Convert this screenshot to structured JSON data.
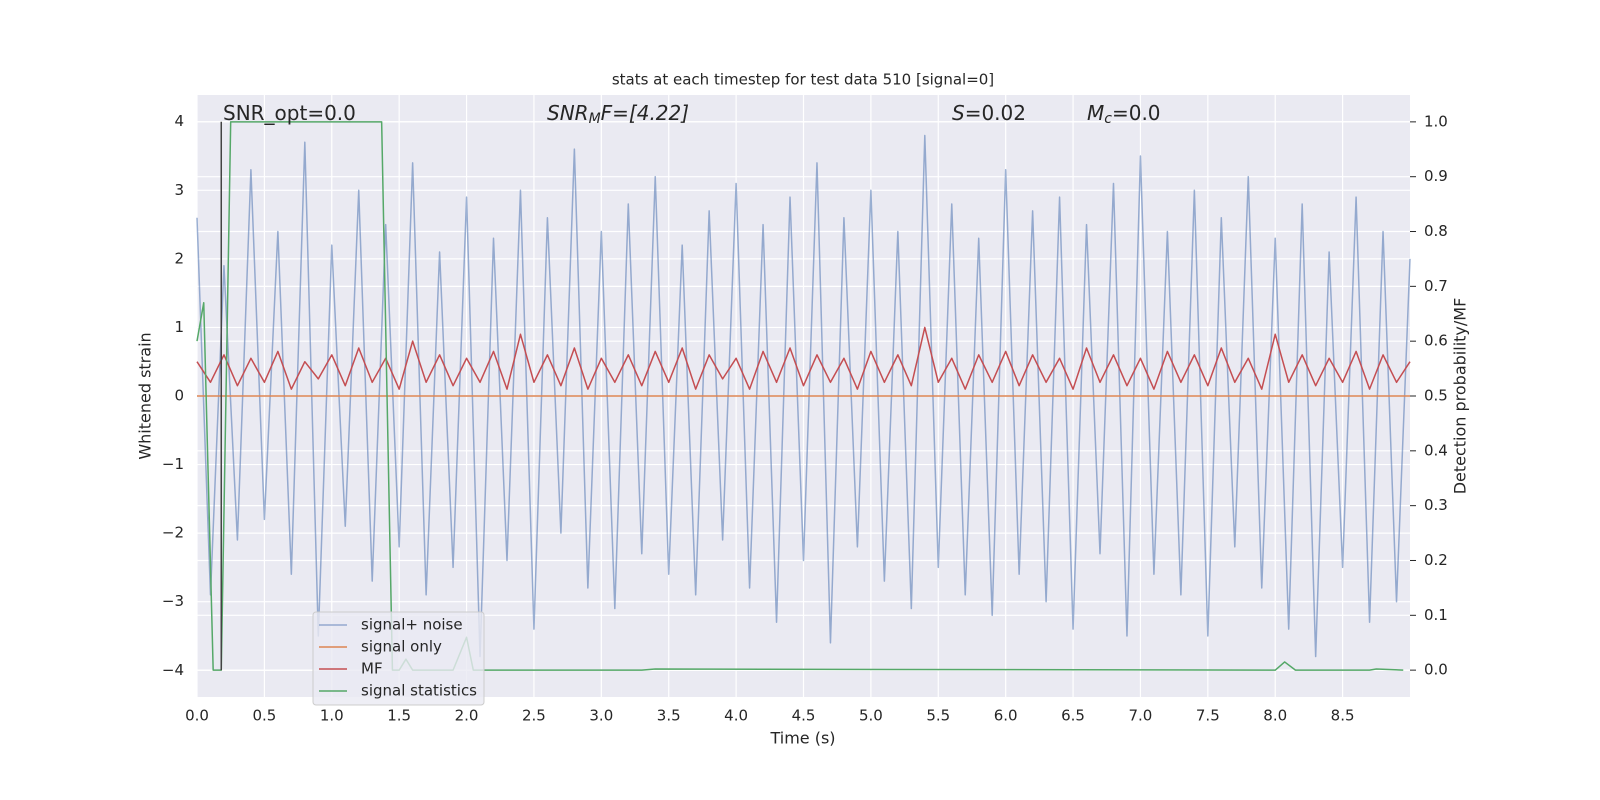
{
  "chart_data": {
    "type": "line",
    "title": "stats at each timestep for test data 510 [signal=0]",
    "xlabel": "Time (s)",
    "ylabel": "Whitened strain",
    "y2label": "Detection probability/MF",
    "annotations": [
      {
        "text": "SNR_opt=0.0"
      },
      {
        "base": "SNR",
        "sub": "M",
        "rest": "F=[4.22]"
      },
      {
        "base": "S",
        "rest": "=0.02"
      },
      {
        "base": "M",
        "sub": "c",
        "rest": "=0.0"
      }
    ],
    "xlim": [
      0,
      9.0
    ],
    "ylim": [
      -4.39,
      4.39
    ],
    "y2lim": [
      -0.049,
      1.049
    ],
    "xticks": [
      {
        "value": 0,
        "label": "0.0"
      },
      0.5,
      {
        "value": 1,
        "label": "1.0"
      },
      1.5,
      {
        "value": 2,
        "label": "2.0"
      },
      2.5,
      {
        "value": 3,
        "label": "3.0"
      },
      3.5,
      {
        "value": 4,
        "label": "4.0"
      },
      4.5,
      {
        "value": 5,
        "label": "5.0"
      },
      5.5,
      {
        "value": 6,
        "label": "6.0"
      },
      6.5,
      {
        "value": 7,
        "label": "7.0"
      },
      7.5,
      {
        "value": 8,
        "label": "8.0"
      },
      8.5
    ],
    "yticks": [
      {
        "value": -4,
        "label": "−4"
      },
      {
        "value": -3,
        "label": "−3"
      },
      {
        "value": -2,
        "label": "−2"
      },
      {
        "value": -1,
        "label": "−1"
      },
      0,
      1,
      2,
      3,
      4
    ],
    "y2ticks": [
      {
        "value": 0,
        "label": "0.0"
      },
      0.1,
      0.2,
      0.3,
      0.4,
      0.5,
      0.6,
      0.7,
      0.8,
      0.9,
      {
        "value": 1,
        "label": "1.0"
      }
    ],
    "grid": true,
    "x": [
      0.0,
      0.1,
      0.2,
      0.3,
      0.4,
      0.5,
      0.6,
      0.7,
      0.8,
      0.9,
      1.0,
      1.1,
      1.2,
      1.3,
      1.4,
      1.5,
      1.6,
      1.7,
      1.8,
      1.9,
      2.0,
      2.1,
      2.2,
      2.3,
      2.4,
      2.5,
      2.6,
      2.7,
      2.8,
      2.9,
      3.0,
      3.1,
      3.2,
      3.3,
      3.4,
      3.5,
      3.6,
      3.7,
      3.8,
      3.9,
      4.0,
      4.1,
      4.2,
      4.3,
      4.4,
      4.5,
      4.6,
      4.7,
      4.8,
      4.9,
      5.0,
      5.1,
      5.2,
      5.3,
      5.4,
      5.5,
      5.6,
      5.7,
      5.8,
      5.9,
      6.0,
      6.1,
      6.2,
      6.3,
      6.4,
      6.5,
      6.6,
      6.7,
      6.8,
      6.9,
      7.0,
      7.1,
      7.2,
      7.3,
      7.4,
      7.5,
      7.6,
      7.7,
      7.8,
      7.9,
      8.0,
      8.1,
      8.2,
      8.3,
      8.4,
      8.5,
      8.6,
      8.7,
      8.8,
      8.9,
      9.0
    ],
    "series": [
      {
        "name": "signal+ noise",
        "color": "#4c72b0",
        "values": [
          2.6,
          -2.9,
          1.9,
          -2.1,
          3.3,
          -1.8,
          2.4,
          -2.6,
          3.7,
          -3.5,
          2.2,
          -1.9,
          3.0,
          -2.7,
          2.5,
          -2.2,
          3.4,
          -2.9,
          2.1,
          -2.5,
          2.9,
          -3.8,
          2.3,
          -2.4,
          3.0,
          -3.4,
          2.6,
          -2.0,
          3.6,
          -2.8,
          2.4,
          -3.1,
          2.8,
          -2.3,
          3.2,
          -2.6,
          2.2,
          -2.9,
          2.7,
          -2.1,
          3.1,
          -2.8,
          2.5,
          -3.3,
          2.9,
          -2.4,
          3.4,
          -3.6,
          2.6,
          -2.2,
          3.0,
          -2.7,
          2.4,
          -3.1,
          3.8,
          -2.5,
          2.8,
          -2.9,
          2.3,
          -3.2,
          3.3,
          -2.6,
          2.7,
          -3.0,
          2.9,
          -3.4,
          2.5,
          -2.3,
          3.1,
          -3.5,
          3.5,
          -2.6,
          2.4,
          -2.9,
          3.0,
          -3.5,
          2.6,
          -2.2,
          3.2,
          -2.8,
          2.3,
          -3.4,
          2.8,
          -3.8,
          2.1,
          -2.5,
          2.9,
          -3.3,
          2.4,
          -3.0,
          2.0
        ]
      },
      {
        "name": "signal only",
        "color": "#dd8452",
        "values": [
          0,
          0,
          0,
          0,
          0,
          0,
          0,
          0,
          0,
          0,
          0,
          0,
          0,
          0,
          0,
          0,
          0,
          0,
          0,
          0,
          0,
          0,
          0,
          0,
          0,
          0,
          0,
          0,
          0,
          0,
          0,
          0,
          0,
          0,
          0,
          0,
          0,
          0,
          0,
          0,
          0,
          0,
          0,
          0,
          0,
          0,
          0,
          0,
          0,
          0,
          0,
          0,
          0,
          0,
          0,
          0,
          0,
          0,
          0,
          0,
          0,
          0,
          0,
          0,
          0,
          0,
          0,
          0,
          0,
          0,
          0,
          0,
          0,
          0,
          0,
          0,
          0,
          0,
          0,
          0,
          0,
          0,
          0,
          0,
          0,
          0,
          0,
          0,
          0,
          0,
          0
        ]
      },
      {
        "name": "MF",
        "color": "#c44e52",
        "values": [
          0.5,
          0.2,
          0.6,
          0.15,
          0.55,
          0.2,
          0.65,
          0.1,
          0.5,
          0.25,
          0.6,
          0.15,
          0.7,
          0.2,
          0.55,
          0.1,
          0.8,
          0.2,
          0.6,
          0.15,
          0.55,
          0.2,
          0.65,
          0.1,
          0.9,
          0.2,
          0.6,
          0.15,
          0.7,
          0.1,
          0.55,
          0.2,
          0.6,
          0.15,
          0.65,
          0.2,
          0.7,
          0.1,
          0.6,
          0.25,
          0.55,
          0.1,
          0.65,
          0.2,
          0.7,
          0.15,
          0.6,
          0.2,
          0.55,
          0.1,
          0.65,
          0.2,
          0.6,
          0.15,
          1.0,
          0.2,
          0.55,
          0.1,
          0.6,
          0.2,
          0.65,
          0.15,
          0.6,
          0.2,
          0.55,
          0.1,
          0.7,
          0.2,
          0.6,
          0.15,
          0.55,
          0.1,
          0.65,
          0.2,
          0.6,
          0.15,
          0.7,
          0.2,
          0.55,
          0.1,
          0.9,
          0.2,
          0.6,
          0.15,
          0.55,
          0.2,
          0.65,
          0.1,
          0.6,
          0.2,
          0.5
        ]
      },
      {
        "name": "signal statistics",
        "color": "#55a868",
        "axis": "y2",
        "x": [
          0.0,
          0.05,
          0.12,
          0.18,
          0.25,
          1.37,
          1.45,
          1.5,
          1.55,
          1.6,
          1.9,
          2.0,
          2.05,
          2.1,
          3.3,
          3.4,
          8.0,
          8.07,
          8.15,
          8.7,
          8.75,
          8.95
        ],
        "values": [
          0.6,
          0.67,
          0.0,
          0.0,
          1.0,
          1.0,
          0.0,
          0.0,
          0.02,
          0.0,
          0.0,
          0.06,
          0.0,
          0.0,
          0.0,
          0.002,
          0.0,
          0.015,
          0.0,
          0.0,
          0.002,
          0.0
        ]
      }
    ],
    "vlines": [
      {
        "x": 0.18,
        "ymin": -4,
        "ymax": 4,
        "color": "#444444"
      }
    ]
  }
}
